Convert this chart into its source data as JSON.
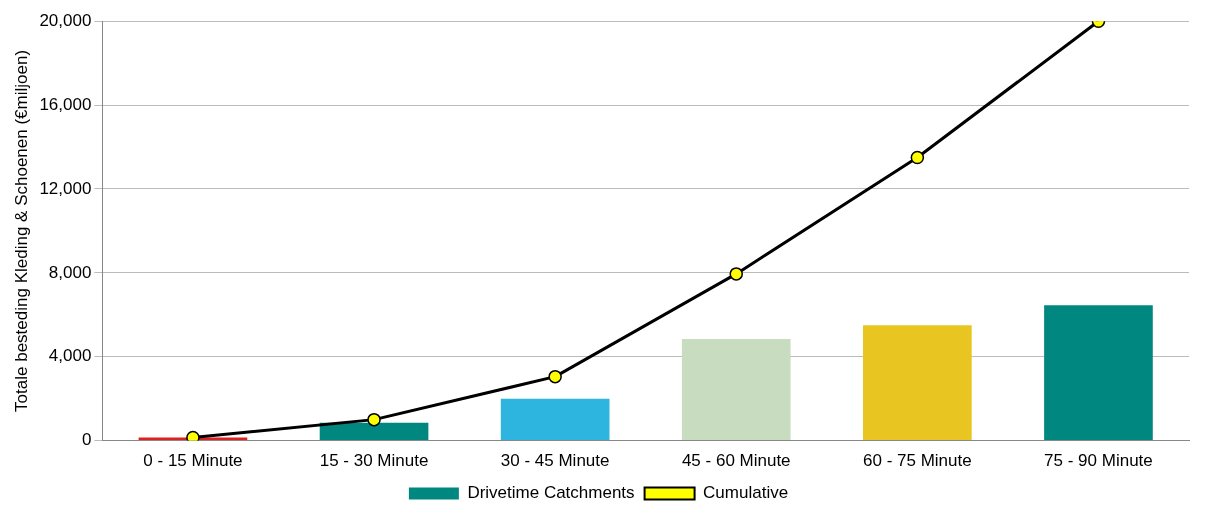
{
  "chart_data": {
    "type": "bar",
    "ylabel": "Totale besteding Kleding & Schoenen (€miljoen)",
    "categories": [
      "0 - 15 Minute",
      "15 - 30 Minute",
      "30 - 45 Minute",
      "45 - 60 Minute",
      "60 - 75 Minute",
      "75 - 90 Minute"
    ],
    "series": [
      {
        "name": "Drivetime Catchments",
        "color": "#00877f",
        "colors": [
          "#e02020",
          "#00877f",
          "#2db5e0",
          "#c8dcc0",
          "#e8c520",
          "#00877f"
        ],
        "values": [
          150,
          850,
          2000,
          4850,
          5500,
          6450
        ]
      },
      {
        "name": "Cumulative",
        "type": "line",
        "color": "#000000",
        "marker": "circle",
        "values": [
          150,
          1000,
          3050,
          7950,
          13500,
          20000
        ]
      }
    ],
    "ylim": [
      0,
      20000
    ],
    "yticks": [
      0,
      {
        "value": 4000,
        "label": "4,000"
      },
      {
        "value": 8000,
        "label": "8,000"
      },
      {
        "value": 12000,
        "label": "12,000"
      },
      {
        "value": 16000,
        "label": "16,000"
      },
      {
        "value": 20000,
        "label": "20,000"
      }
    ],
    "grid": "y",
    "legend": "bottom"
  }
}
